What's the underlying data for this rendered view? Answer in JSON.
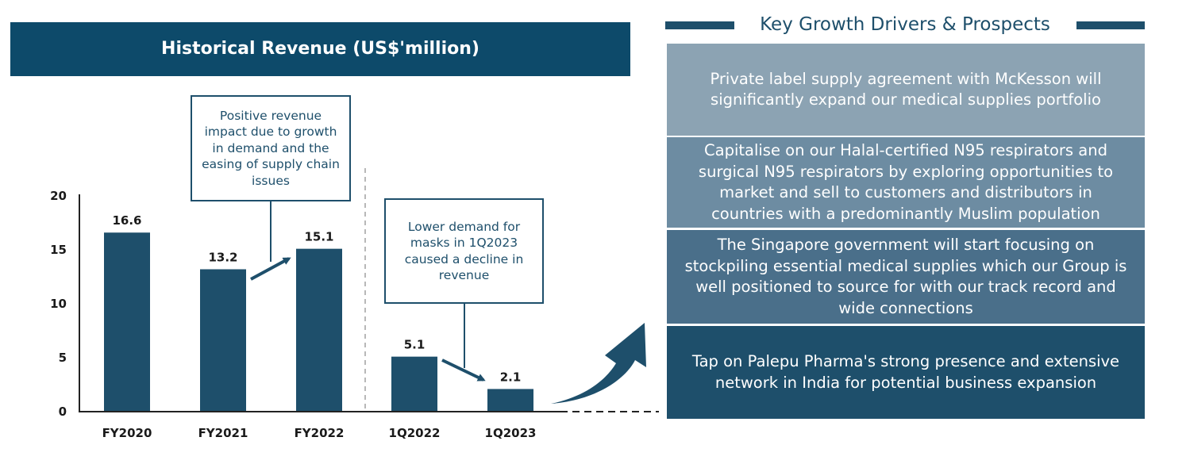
{
  "chart_data": {
    "type": "bar",
    "title": "Historical Revenue (US$'million)",
    "categories": [
      "FY2020",
      "FY2021",
      "FY2022",
      "1Q2022",
      "1Q2023"
    ],
    "values": [
      16.6,
      13.2,
      15.1,
      5.1,
      2.1
    ],
    "value_labels": [
      "16.6",
      "13.2",
      "15.1",
      "5.1",
      "2.1"
    ],
    "yticks": [
      "0",
      "5",
      "10",
      "15",
      "20"
    ],
    "ylim": [
      0,
      20
    ],
    "xlabel": "",
    "ylabel": "",
    "grid": false,
    "legend": "none",
    "bar_color": "#1e4f6b",
    "annotations": [
      "Positive revenue impact due to growth in demand and the easing of supply chain issues",
      "Lower demand for masks in 1Q2023 caused a decline in revenue"
    ]
  },
  "prospects": {
    "title": "Key Growth Drivers & Prospects",
    "items": [
      "Private label supply agreement with McKesson will significantly expand our medical supplies portfolio",
      "Capitalise on our Halal-certified N95 respirators and surgical N95 respirators by exploring opportunities to market and sell to customers and distributors in countries with a predominantly Muslim population",
      "The Singapore government will start focusing on stockpiling essential medical supplies which our Group is well positioned to source for with our track record and wide connections",
      "Tap on Palepu Pharma's strong presence and extensive network in India for potential business expansion"
    ]
  },
  "colors": {
    "title_bar": "#0d4a6a",
    "bar": "#1e4f6b",
    "driver_1": "#8ca3b3",
    "driver_2": "#6d8ca2",
    "driver_3": "#4a6f8a",
    "driver_4": "#1e4f6b"
  }
}
